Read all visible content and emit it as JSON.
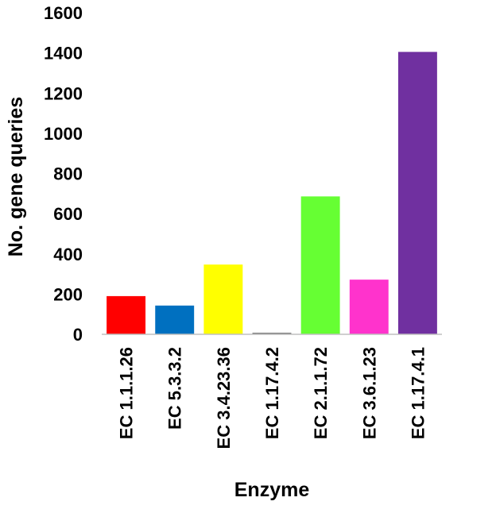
{
  "chart_data": {
    "type": "bar",
    "title": "",
    "xlabel": "Enzyme",
    "ylabel": "No. gene queries",
    "ylim": [
      0,
      1600
    ],
    "yticks": [
      0,
      200,
      400,
      600,
      800,
      1000,
      1200,
      1400,
      1600
    ],
    "grid": false,
    "legend": "none",
    "categories": [
      "EC 1.1.1.26",
      "EC 5.3.3.2",
      "EC 3.4.23.36",
      "EC 1.17.4.2",
      "EC 2.1.1.72",
      "EC 3.6.1.23",
      "EC 1.17.4.1"
    ],
    "values": [
      190,
      143,
      347,
      8,
      686,
      272,
      1405
    ],
    "colors": [
      "#ff0000",
      "#0070c0",
      "#ffff00",
      "#7f7f7f",
      "#66ff33",
      "#ff33cc",
      "#7030a0"
    ]
  }
}
